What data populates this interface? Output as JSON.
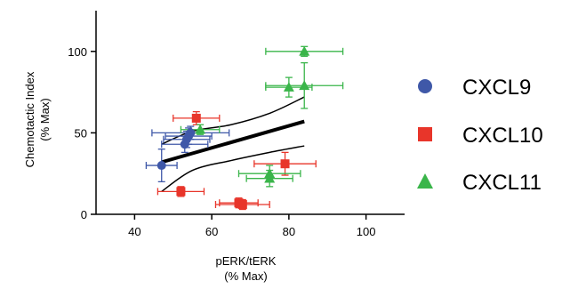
{
  "chart_data": {
    "type": "scatter",
    "xlabel": [
      "pERK/tERK",
      "(% Max)"
    ],
    "ylabel": [
      "Chemotactic Index",
      "(% Max)"
    ],
    "xlim": [
      30,
      110
    ],
    "ylim": [
      0,
      125
    ],
    "x_ticks": [
      40,
      60,
      80,
      100
    ],
    "x_tick_labels": [
      "40",
      "60",
      "80",
      "100"
    ],
    "y_ticks": [
      0,
      50,
      100
    ],
    "y_tick_labels": [
      "0",
      "50",
      "100"
    ],
    "grid": false,
    "legend_position": "right",
    "series": [
      {
        "name": "CXCL9",
        "marker": "circle",
        "color": "#3f58a8",
        "points": [
          {
            "x": 47,
            "y": 30,
            "xerr": 4,
            "yerr": 10
          },
          {
            "x": 53,
            "y": 43,
            "xerr": 6,
            "yerr": 5
          },
          {
            "x": 53.5,
            "y": 46,
            "xerr": 6,
            "yerr": 5
          },
          {
            "x": 54,
            "y": 48,
            "xerr": 6,
            "yerr": 5
          },
          {
            "x": 54.5,
            "y": 50,
            "xerr": 10,
            "yerr": 4
          }
        ]
      },
      {
        "name": "CXCL10",
        "marker": "square",
        "color": "#e8352a",
        "points": [
          {
            "x": 52,
            "y": 14,
            "xerr": 6,
            "yerr": 3
          },
          {
            "x": 56,
            "y": 59,
            "xerr": 6,
            "yerr": 4
          },
          {
            "x": 67,
            "y": 7,
            "xerr": 5,
            "yerr": 3
          },
          {
            "x": 68,
            "y": 6,
            "xerr": 7,
            "yerr": 3
          },
          {
            "x": 79,
            "y": 31,
            "xerr": 8,
            "yerr": 7
          }
        ]
      },
      {
        "name": "CXCL11",
        "marker": "triangle",
        "color": "#3ab54a",
        "points": [
          {
            "x": 57,
            "y": 52,
            "xerr": 5,
            "yerr": 3
          },
          {
            "x": 75,
            "y": 22,
            "xerr": 6,
            "yerr": 5
          },
          {
            "x": 75,
            "y": 25,
            "xerr": 8,
            "yerr": 5
          },
          {
            "x": 80,
            "y": 78,
            "xerr": 6,
            "yerr": 6
          },
          {
            "x": 84,
            "y": 79,
            "xerr": 10,
            "yerr": 14
          },
          {
            "x": 84,
            "y": 100,
            "xerr": 10,
            "yerr": 3
          }
        ]
      }
    ],
    "fit_line": {
      "x": [
        47,
        84
      ],
      "y": [
        32,
        57
      ]
    },
    "confidence_band": {
      "upper": [
        [
          47,
          43
        ],
        [
          55,
          51
        ],
        [
          65,
          55
        ],
        [
          75,
          62
        ],
        [
          84,
          72
        ]
      ],
      "lower": [
        [
          47,
          14
        ],
        [
          55,
          27
        ],
        [
          65,
          33
        ],
        [
          75,
          38
        ],
        [
          84,
          42
        ]
      ]
    }
  }
}
